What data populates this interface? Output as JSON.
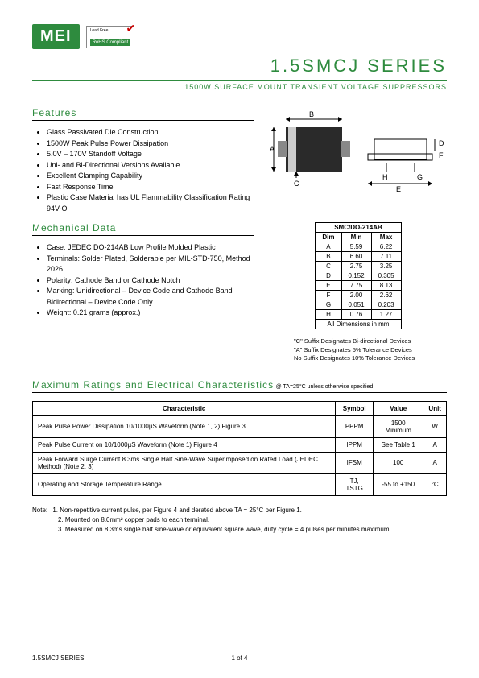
{
  "logo_text": "MEI",
  "rohs": {
    "line1": "Lead Free",
    "line2": "RoHS Compliant"
  },
  "title": "1.5SMCJ SERIES",
  "subtitle": "1500W SURFACE MOUNT TRANSIENT VOLTAGE SUPPRESSORS",
  "features_title": "Features",
  "features": [
    "Glass Passivated Die Construction",
    "1500W Peak Pulse Power Dissipation",
    "5.0V – 170V Standoff Voltage",
    "Uni- and Bi-Directional Versions Available",
    "Excellent Clamping Capability",
    "Fast Response Time",
    "Plastic Case Material has UL Flammability Classification Rating 94V-O"
  ],
  "mechanical_title": "Mechanical Data",
  "mechanical": [
    "Case: JEDEC DO-214AB Low Profile Molded Plastic",
    "Terminals: Solder Plated, Solderable per MIL-STD-750, Method 2026",
    "Polarity: Cathode Band or Cathode Notch",
    "Marking: Unidirectional – Device Code and Cathode Band Bidirectional – Device Code Only",
    "Weight: 0.21 grams (approx.)"
  ],
  "dim_table": {
    "header": "SMC/DO-214AB",
    "cols": [
      "Dim",
      "Min",
      "Max"
    ],
    "rows": [
      [
        "A",
        "5.59",
        "6.22"
      ],
      [
        "B",
        "6.60",
        "7.11"
      ],
      [
        "C",
        "2.75",
        "3.25"
      ],
      [
        "D",
        "0.152",
        "0.305"
      ],
      [
        "E",
        "7.75",
        "8.13"
      ],
      [
        "F",
        "2.00",
        "2.62"
      ],
      [
        "G",
        "0.051",
        "0.203"
      ],
      [
        "H",
        "0.76",
        "1.27"
      ]
    ],
    "footer": "All Dimensions in mm"
  },
  "suffix_notes": [
    "\"C\" Suffix Designates Bi-directional Devices",
    "\"A\" Suffix Designates 5% Tolerance Devices",
    "No Suffix Designates 10% Tolerance Devices"
  ],
  "ratings_title": "Maximum Ratings and Electrical Characteristics",
  "ratings_cond": "@ TA=25°C unless otherwise specified",
  "ratings_table": {
    "cols": [
      "Characteristic",
      "Symbol",
      "Value",
      "Unit"
    ],
    "rows": [
      [
        "Peak Pulse Power Dissipation 10/1000µS Waveform (Note 1, 2) Figure 3",
        "PPPM",
        "1500 Minimum",
        "W"
      ],
      [
        "Peak Pulse Current on 10/1000µS Waveform (Note 1) Figure 4",
        "IPPM",
        "See Table 1",
        "A"
      ],
      [
        "Peak Forward Surge Current 8.3ms Single Half Sine-Wave Superimposed on Rated Load (JEDEC Method) (Note 2, 3)",
        "IFSM",
        "100",
        "A"
      ],
      [
        "Operating and Storage Temperature Range",
        "TJ, TSTG",
        "-55 to +150",
        "°C"
      ]
    ]
  },
  "notes_label": "Note:",
  "notes": [
    "1. Non-repetitive current pulse, per Figure 4 and derated above TA = 25°C per Figure 1.",
    "2. Mounted on 8.0mm² copper pads to each terminal.",
    "3. Measured on 8.3ms single half sine-wave or equivalent square wave, duty cycle = 4 pulses per minutes maximum."
  ],
  "footer_left": "1.5SMCJ SERIES",
  "footer_center": "1  of  4",
  "diagram_labels": {
    "A": "A",
    "B": "B",
    "C": "C",
    "D": "D",
    "E": "E",
    "F": "F",
    "G": "G",
    "H": "H"
  },
  "colors": {
    "brand_green": "#2e8b3e",
    "black": "#000000",
    "component_body": "#2a2a2a",
    "component_band": "#cccccc"
  }
}
